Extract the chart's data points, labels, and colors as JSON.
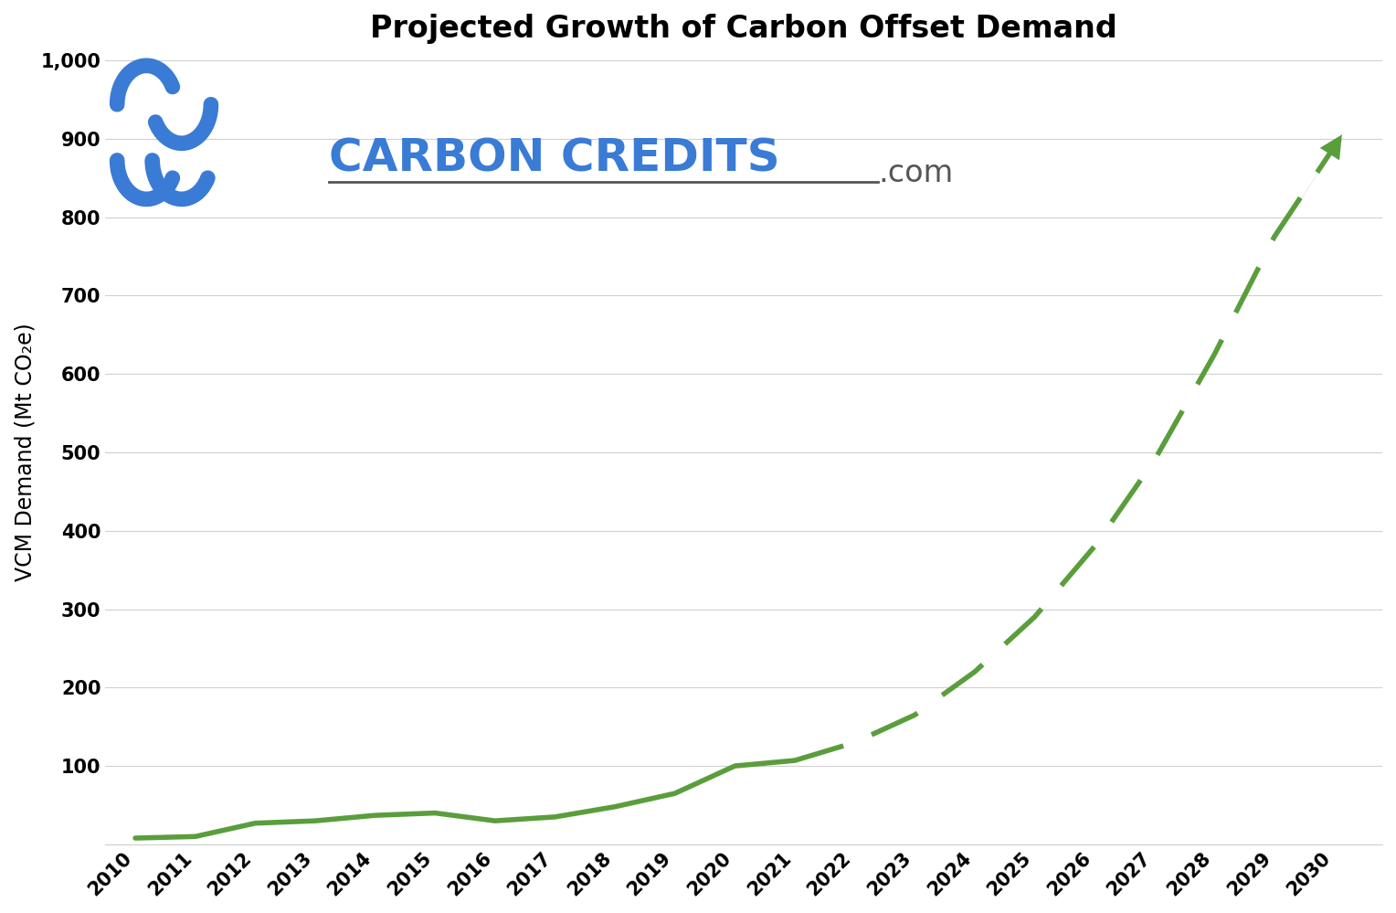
{
  "title": "Projected Growth of Carbon Offset Demand",
  "ylabel": "VCM Demand (Mt CO₂e)",
  "years_solid": [
    2010,
    2011,
    2012,
    2013,
    2014,
    2015,
    2016,
    2017,
    2018,
    2019,
    2020,
    2021
  ],
  "values_solid": [
    8,
    10,
    27,
    30,
    37,
    40,
    30,
    35,
    48,
    65,
    100,
    107
  ],
  "years_dashed": [
    2021,
    2022,
    2023,
    2024,
    2025,
    2026,
    2027,
    2028,
    2029,
    2030
  ],
  "values_dashed": [
    107,
    130,
    165,
    220,
    290,
    380,
    490,
    625,
    775,
    890
  ],
  "line_color": "#5a9e3c",
  "xlim": [
    2009.5,
    2030.8
  ],
  "ylim": [
    0,
    1000
  ],
  "yticks": [
    0,
    100,
    200,
    300,
    400,
    500,
    600,
    700,
    800,
    900,
    1000
  ],
  "ytick_labels": [
    "",
    "100",
    "200",
    "300",
    "400",
    "500",
    "600",
    "700",
    "800",
    "900",
    "1,000"
  ],
  "xticks": [
    2010,
    2011,
    2012,
    2013,
    2014,
    2015,
    2016,
    2017,
    2018,
    2019,
    2020,
    2021,
    2022,
    2023,
    2024,
    2025,
    2026,
    2027,
    2028,
    2029,
    2030
  ],
  "background_color": "#ffffff",
  "grid_color": "#d0d0d0",
  "title_fontsize": 24,
  "tick_fontsize": 15,
  "label_fontsize": 17,
  "line_width": 4.0,
  "logo_text": "CARBON CREDITS",
  "logo_color": "#3a7bd5",
  "logo_dot_com": ".com",
  "logo_dot_com_color": "#555555",
  "logo_underline_color": "#555555"
}
